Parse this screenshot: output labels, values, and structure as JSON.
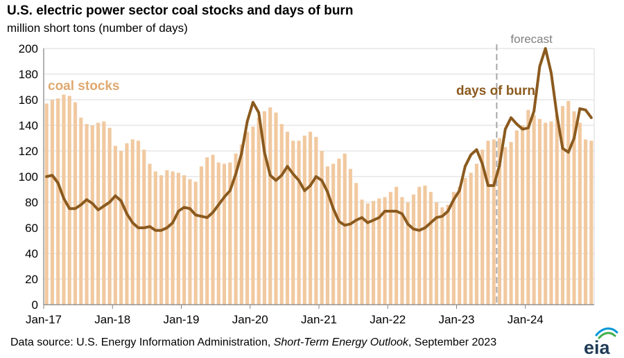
{
  "header": {
    "title": "U.S. electric power sector coal stocks and days of burn",
    "subtitle": "million short tons (number of days)"
  },
  "footer": {
    "source_prefix": "Data source: U.S. Energy Information Administration,",
    "source_publication": "Short-Term Energy Outlook",
    "source_suffix": ", September 2023",
    "logo_text": "eia"
  },
  "colors": {
    "stocks": "#F1C9A0",
    "burn": "#8B5A1E",
    "stocks_label": "#E0A870",
    "grid": "#D9D9D9",
    "forecast_line": "#A6A6A6",
    "forecast_text": "#7F7F7F"
  },
  "chart_data": {
    "type": "bar+line",
    "categories_start": "2017-01",
    "frequency": "monthly",
    "x_tick_labels": [
      "Jan-17",
      "Jan-18",
      "Jan-19",
      "Jan-20",
      "Jan-21",
      "Jan-22",
      "Jan-23",
      "Jan-24"
    ],
    "ylim": [
      0,
      200
    ],
    "y_ticks": [
      0,
      20,
      40,
      60,
      80,
      100,
      120,
      140,
      160,
      180,
      200
    ],
    "grid": true,
    "forecast": {
      "label": "forecast",
      "starts": "2023-08"
    },
    "series": [
      {
        "name": "coal stocks",
        "type": "bar",
        "values": [
          157,
          160,
          161,
          164,
          163,
          158,
          146,
          141,
          140,
          142,
          143,
          138,
          124,
          120,
          126,
          129,
          128,
          121,
          110,
          104,
          101,
          105,
          104,
          103,
          101,
          98,
          96,
          108,
          115,
          117,
          111,
          110,
          111,
          118,
          125,
          135,
          139,
          146,
          151,
          154,
          150,
          141,
          135,
          128,
          128,
          132,
          135,
          131,
          120,
          108,
          110,
          114,
          118,
          106,
          95,
          82,
          79,
          81,
          83,
          84,
          88,
          92,
          84,
          80,
          86,
          92,
          93,
          88,
          80,
          76,
          78,
          88,
          92,
          99,
          103,
          110,
          121,
          128,
          129,
          130,
          123,
          127,
          136,
          140,
          152,
          148,
          145,
          142,
          143,
          148,
          155,
          159,
          151,
          142,
          129,
          128
        ],
        "color": "#F1C9A0"
      },
      {
        "name": "days of burn",
        "type": "line",
        "values": [
          100,
          101,
          95,
          83,
          75,
          75,
          78,
          82,
          79,
          74,
          77,
          80,
          85,
          81,
          71,
          64,
          60,
          60,
          61,
          58,
          58,
          60,
          64,
          73,
          76,
          75,
          70,
          69,
          68,
          72,
          78,
          84,
          89,
          102,
          118,
          143,
          158,
          150,
          119,
          101,
          97,
          101,
          108,
          102,
          97,
          89,
          93,
          100,
          97,
          88,
          75,
          65,
          62,
          63,
          66,
          68,
          64,
          66,
          68,
          73,
          73,
          73,
          71,
          63,
          59,
          58,
          60,
          64,
          68,
          69,
          73,
          82,
          89,
          108,
          117,
          121,
          110,
          93,
          93,
          109,
          137,
          146,
          141,
          137,
          138,
          151,
          186,
          200,
          181,
          148,
          122,
          119,
          130,
          153,
          152,
          146
        ],
        "color": "#8B5A1E"
      }
    ]
  }
}
